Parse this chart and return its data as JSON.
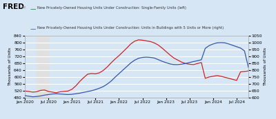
{
  "title_fred": "FRED",
  "legend1": "New Privately-Owned Housing Units Under Construction: Single-Family Units (left)",
  "legend2": "New Privately-Owned Housing Units Under Construction: Units in Buildings with 5 Units or More (right)",
  "ylabel_left": "Thousands of Units",
  "ylabel_right": "Thousands of Units",
  "ylim_left": [
    480,
    840
  ],
  "ylim_right": [
    600,
    1050
  ],
  "yticks_left": [
    480,
    520,
    560,
    600,
    640,
    680,
    720,
    760,
    800,
    840
  ],
  "yticks_right": [
    600,
    650,
    700,
    750,
    800,
    850,
    900,
    950,
    1000,
    1050
  ],
  "background_color": "#d6e6f5",
  "plot_bg_color": "#d6e6f5",
  "grid_color": "#ffffff",
  "line1_color": "#cc2222",
  "line2_color": "#3355aa",
  "recession_color": "#e0e0e0",
  "recession_start": 3,
  "recession_end": 6,
  "red_data": [
    518,
    516,
    512,
    514,
    522,
    524,
    516,
    512,
    508,
    514,
    516,
    518,
    528,
    548,
    574,
    596,
    616,
    620,
    618,
    624,
    638,
    658,
    682,
    704,
    724,
    746,
    768,
    792,
    808,
    816,
    814,
    810,
    806,
    798,
    786,
    768,
    748,
    728,
    710,
    698,
    686,
    678,
    674,
    672,
    678,
    684,
    592,
    600,
    604,
    608,
    604,
    598,
    592,
    586,
    580,
    630,
    632,
    635
  ],
  "blue_data": [
    614,
    610,
    606,
    608,
    612,
    618,
    622,
    626,
    628,
    626,
    624,
    622,
    624,
    628,
    632,
    638,
    644,
    650,
    658,
    668,
    680,
    698,
    720,
    748,
    774,
    800,
    826,
    852,
    872,
    886,
    892,
    894,
    892,
    888,
    876,
    864,
    854,
    845,
    840,
    840,
    843,
    848,
    855,
    862,
    868,
    875,
    958,
    978,
    990,
    998,
    1000,
    998,
    990,
    980,
    970,
    960,
    940,
    820
  ],
  "xtick_positions": [
    0,
    6,
    12,
    18,
    24,
    30,
    36,
    42,
    48,
    54
  ],
  "xtick_labels": [
    "Jan 2020",
    "Jul 2020",
    "Jan 2021",
    "Jul 2021",
    "Jan 2022",
    "Jul 2022",
    "Jan 2023",
    "Jul 2023",
    "Jan 2024",
    "Jul 2024"
  ]
}
